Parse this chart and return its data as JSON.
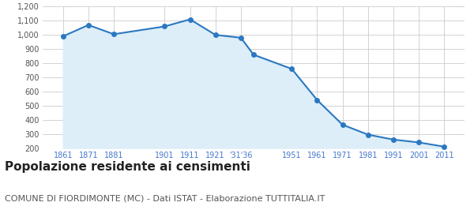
{
  "years": [
    1861,
    1871,
    1881,
    1901,
    1911,
    1921,
    1931,
    1936,
    1951,
    1961,
    1971,
    1981,
    1991,
    2001,
    2011
  ],
  "values": [
    990,
    1070,
    1005,
    1060,
    1110,
    1000,
    980,
    860,
    760,
    540,
    365,
    295,
    260,
    240,
    210
  ],
  "tick_years": [
    1861,
    1871,
    1881,
    1901,
    1911,
    1921,
    1931,
    1951,
    1961,
    1971,
    1981,
    1991,
    2001,
    2011
  ],
  "tick_labels": [
    "1861",
    "1871",
    "1881",
    "1901",
    "1911",
    "1921",
    "'31'36",
    "1951",
    "1961",
    "1971",
    "1981",
    "1991",
    "2001",
    "2011"
  ],
  "line_color": "#2b78c2",
  "fill_color": "#ddeef8",
  "marker_color": "#2b78c2",
  "background_color": "#ffffff",
  "grid_color": "#cccccc",
  "ylim": [
    200,
    1200
  ],
  "yticks": [
    200,
    300,
    400,
    500,
    600,
    700,
    800,
    900,
    1000,
    1100,
    1200
  ],
  "ytick_labels": [
    "200",
    "300",
    "400",
    "500",
    "600",
    "700",
    "800",
    "900",
    "1,000",
    "1,100",
    "1,200"
  ],
  "xlim_left": 1853,
  "xlim_right": 2019,
  "title": "Popolazione residente ai censimenti",
  "subtitle": "COMUNE DI FIORDIMONTE (MC) - Dati ISTAT - Elaborazione TUTTITALIA.IT",
  "title_fontsize": 11,
  "subtitle_fontsize": 8,
  "title_color": "#222222",
  "subtitle_color": "#555555",
  "tick_label_color": "#4477cc",
  "ytick_label_color": "#555555",
  "tick_fontsize": 7,
  "ytick_fontsize": 7
}
